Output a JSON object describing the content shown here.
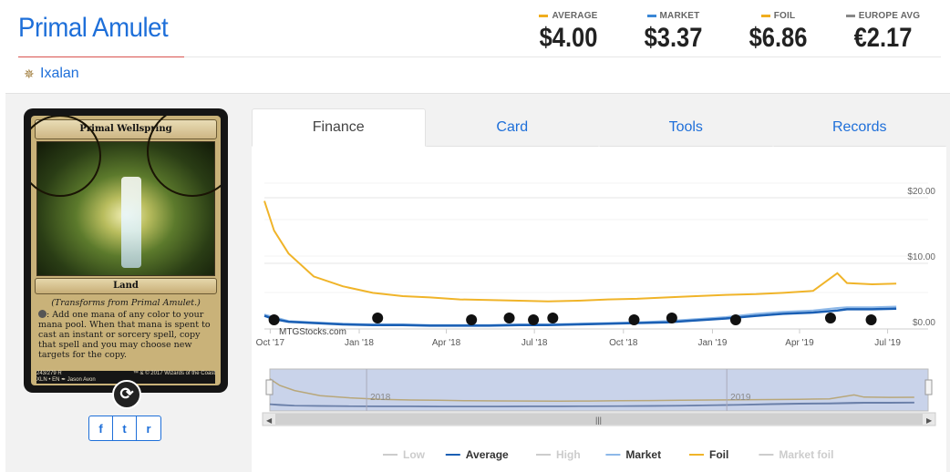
{
  "card_name": "Primal Amulet",
  "set": {
    "name": "Ixalan",
    "icon": "ixalan-set-icon"
  },
  "prices": [
    {
      "label": "AVERAGE",
      "value": "$4.00",
      "color": "#f0ad1e"
    },
    {
      "label": "MARKET",
      "value": "$3.37",
      "color": "#3a87d6"
    },
    {
      "label": "FOIL",
      "value": "$6.86",
      "color": "#f0ad1e"
    },
    {
      "label": "EUROPE AVG",
      "value": "€2.17",
      "color": "#888888"
    }
  ],
  "card_image": {
    "title": "Primal Wellspring",
    "type_line": "Land",
    "reminder": "(Transforms from Primal Amulet.)",
    "rules": ": Add one mana of any color to your mana pool. When that mana is spent to cast an instant or sorcery spell, copy that spell and you may choose new targets for the copy.",
    "footer_left": "243/279 R",
    "footer_left2": "XLN • EN ✒ Jason Avon",
    "footer_right": "™ & © 2017 Wizards of the Coast"
  },
  "flip_icon": "flip-icon",
  "share": {
    "facebook": "f",
    "twitter": "t",
    "reddit": "r"
  },
  "tabs": [
    {
      "label": "Finance",
      "active": true
    },
    {
      "label": "Card",
      "active": false
    },
    {
      "label": "Tools",
      "active": false
    },
    {
      "label": "Records",
      "active": false
    }
  ],
  "chart_data": {
    "type": "line",
    "watermark": "MTGStocks.com",
    "x_ticks": [
      "Oct '17",
      "Jan '18",
      "Apr '18",
      "Jul '18",
      "Oct '18",
      "Jan '19",
      "Apr '19",
      "Jul '19"
    ],
    "y_ticks": [
      "$0.00",
      "$10.00",
      "$20.00"
    ],
    "ylim": [
      0,
      25
    ],
    "x": [
      "2017-09-25",
      "2017-10-05",
      "2017-10-20",
      "2017-11-15",
      "2017-12-15",
      "2018-01-15",
      "2018-02-15",
      "2018-03-15",
      "2018-04-15",
      "2018-05-15",
      "2018-06-15",
      "2018-07-15",
      "2018-08-15",
      "2018-09-15",
      "2018-10-15",
      "2018-11-15",
      "2018-12-15",
      "2019-01-15",
      "2019-02-15",
      "2019-03-15",
      "2019-04-15",
      "2019-05-10",
      "2019-05-20",
      "2019-06-15",
      "2019-07-10"
    ],
    "series": [
      {
        "name": "Foil",
        "color": "#f0b429",
        "values": [
          19.5,
          15.0,
          11.5,
          8.0,
          6.5,
          5.5,
          5.0,
          4.8,
          4.5,
          4.4,
          4.3,
          4.2,
          4.3,
          4.5,
          4.6,
          4.8,
          5.0,
          5.2,
          5.3,
          5.5,
          5.8,
          8.5,
          7.0,
          6.8,
          6.9
        ]
      },
      {
        "name": "Market",
        "color": "#8db8e8",
        "values": [
          2.2,
          1.8,
          1.2,
          1.0,
          0.8,
          0.7,
          0.7,
          0.6,
          0.6,
          0.6,
          0.7,
          0.7,
          0.8,
          0.9,
          1.0,
          1.2,
          1.5,
          1.8,
          2.3,
          2.6,
          2.8,
          3.2,
          3.3,
          3.3,
          3.4
        ]
      },
      {
        "name": "Average",
        "color": "#1a5fb4",
        "values": [
          2.0,
          1.5,
          1.1,
          0.9,
          0.7,
          0.6,
          0.6,
          0.5,
          0.5,
          0.5,
          0.6,
          0.6,
          0.7,
          0.8,
          0.9,
          1.0,
          1.3,
          1.6,
          2.0,
          2.3,
          2.5,
          2.8,
          3.0,
          3.0,
          3.1
        ]
      }
    ],
    "navigator_labels": [
      "2018",
      "2019"
    ],
    "set_markers": [
      "ixalan",
      "rivals-of-ixalan",
      "dominaria",
      "masters-25",
      "battlebond",
      "m19",
      "guilds-of-ravnica",
      "ultimate-masters",
      "ravnica-allegiance",
      "war-of-the-spark",
      "modern-horizons"
    ],
    "legend": [
      {
        "name": "Low",
        "color": "#cccccc",
        "enabled": false
      },
      {
        "name": "Average",
        "color": "#1a5fb4",
        "enabled": true
      },
      {
        "name": "High",
        "color": "#cccccc",
        "enabled": false
      },
      {
        "name": "Market",
        "color": "#8db8e8",
        "enabled": true
      },
      {
        "name": "Foil",
        "color": "#f0b429",
        "enabled": true
      },
      {
        "name": "Market foil",
        "color": "#cccccc",
        "enabled": false
      }
    ]
  }
}
